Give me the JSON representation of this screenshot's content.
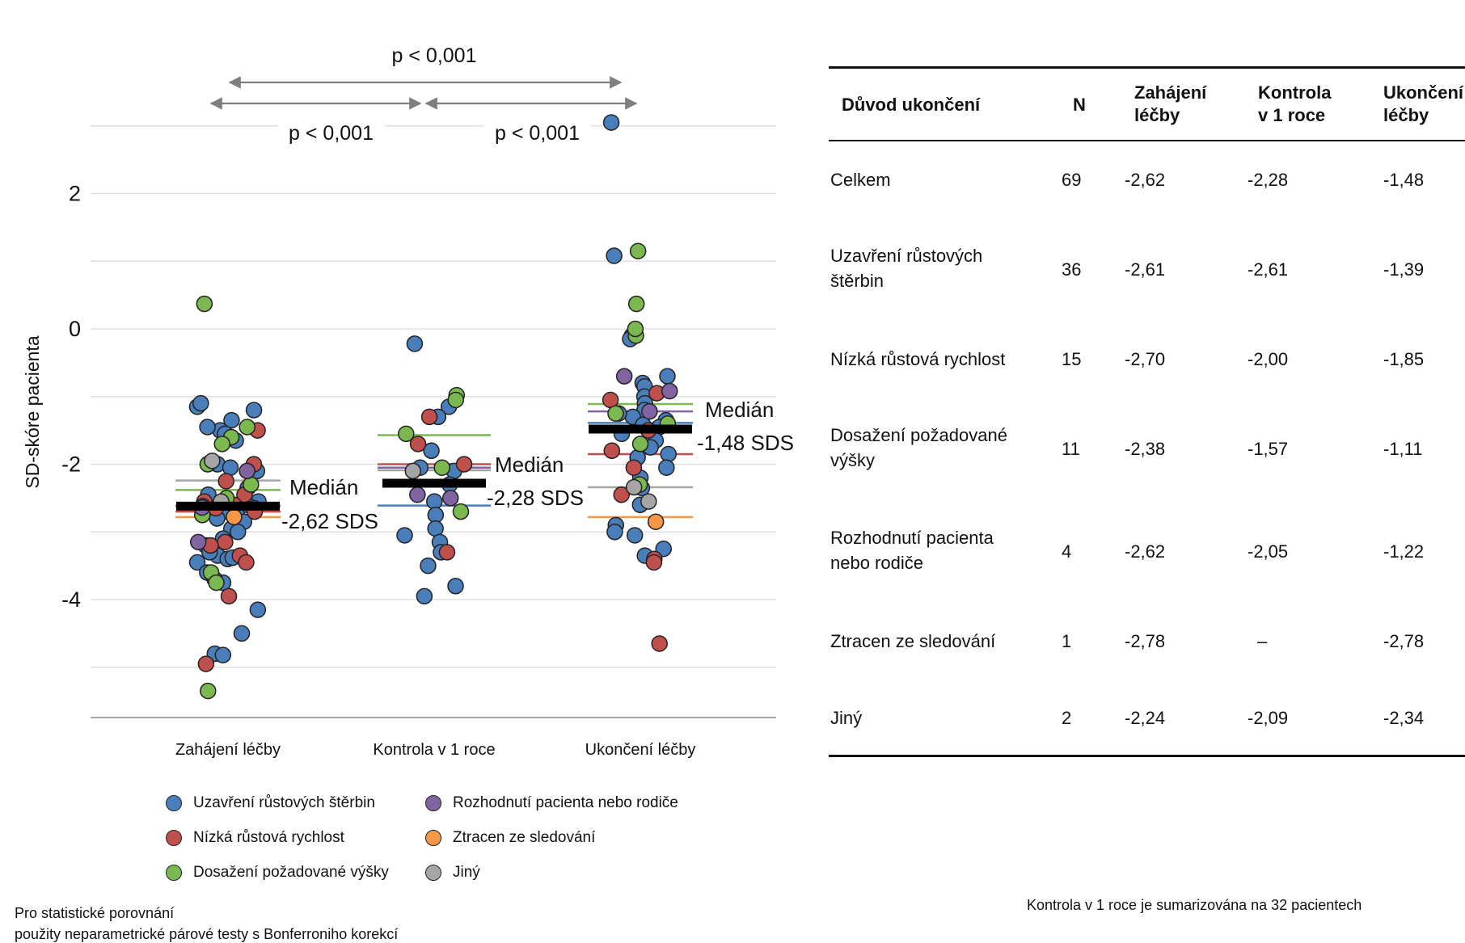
{
  "chart_data": {
    "type": "scatter",
    "ylabel": "SD-skóre pacienta",
    "ylim": [
      -5.8,
      3.2
    ],
    "yticks": [
      {
        "v": 2,
        "label": "2"
      },
      {
        "v": 0,
        "label": "0"
      },
      {
        "v": -2,
        "label": "-2"
      },
      {
        "v": -4,
        "label": "-4"
      }
    ],
    "gridlines": [
      3,
      2,
      1,
      0,
      -1,
      -2,
      -3,
      -4,
      -5
    ],
    "categories": [
      "Zahájení léčby",
      "Kontrola v 1 roce",
      "Ukončení léčby"
    ],
    "groups": [
      {
        "name": "Uzavření růstových štěrbin",
        "color": "#4a7ebb"
      },
      {
        "name": "Nízká růstová rychlost",
        "color": "#c0504d"
      },
      {
        "name": "Dosažení požadované výšky",
        "color": "#7bb84f"
      },
      {
        "name": "Rozhodnutí pacienta nebo rodiče",
        "color": "#8064a2"
      },
      {
        "name": "Ztracen ze sledování",
        "color": "#f79646"
      },
      {
        "name": "Jiný",
        "color": "#a5a5a5"
      }
    ],
    "group_medians": [
      [
        -2.61,
        -2.7,
        -2.38,
        -2.62,
        -2.78,
        -2.24
      ],
      [
        -2.61,
        -2.0,
        -1.57,
        -2.05,
        null,
        -2.09
      ],
      [
        -1.39,
        -1.85,
        -1.11,
        -1.22,
        -2.78,
        -2.34
      ]
    ],
    "overall_median": [
      -2.62,
      -2.28,
      -1.48
    ],
    "median_labels": [
      {
        "title": "Medián",
        "value": "-2,62 SDS"
      },
      {
        "title": "Medián",
        "value": "-2,28 SDS"
      },
      {
        "title": "Medián",
        "value": "-1,48 SDS"
      }
    ],
    "comparisons": [
      {
        "from": 0,
        "to": 2,
        "label": "p < 0,001"
      },
      {
        "from": 0,
        "to": 1,
        "label": "p < 0,001"
      },
      {
        "from": 1,
        "to": 2,
        "label": "p < 0,001"
      }
    ],
    "points": [
      [
        [
          -1.15,
          0
        ],
        [
          -1.2,
          0
        ],
        [
          -1.1,
          0
        ],
        [
          -1.35,
          0
        ],
        [
          -1.5,
          0
        ],
        [
          -1.55,
          0
        ],
        [
          -1.65,
          0
        ],
        [
          -1.45,
          0
        ],
        [
          -2.0,
          0
        ],
        [
          -2.05,
          0
        ],
        [
          -2.1,
          0
        ],
        [
          -2.35,
          0
        ],
        [
          -2.45,
          0
        ],
        [
          -2.55,
          0
        ],
        [
          -2.6,
          0
        ],
        [
          -2.62,
          0
        ],
        [
          -2.65,
          0
        ],
        [
          -2.7,
          0
        ],
        [
          -2.75,
          0
        ],
        [
          -2.8,
          0
        ],
        [
          -2.85,
          0
        ],
        [
          -2.95,
          0
        ],
        [
          -3.0,
          0
        ],
        [
          -3.1,
          0
        ],
        [
          -3.2,
          0
        ],
        [
          -3.35,
          0
        ],
        [
          -3.4,
          0
        ],
        [
          -3.45,
          0
        ],
        [
          -3.6,
          0
        ],
        [
          -3.75,
          0
        ],
        [
          -4.15,
          0
        ],
        [
          -4.5,
          0
        ],
        [
          -4.8,
          0
        ],
        [
          -4.82,
          0
        ],
        [
          -3.3,
          0
        ],
        [
          -3.38,
          0
        ],
        [
          -1.5,
          1
        ],
        [
          -2.0,
          1
        ],
        [
          -2.25,
          1
        ],
        [
          -2.45,
          1
        ],
        [
          -2.6,
          1
        ],
        [
          -2.7,
          1
        ],
        [
          -3.15,
          1
        ],
        [
          -3.2,
          1
        ],
        [
          -3.35,
          1
        ],
        [
          -3.45,
          1
        ],
        [
          -3.7,
          1
        ],
        [
          -3.95,
          1
        ],
        [
          -4.95,
          1
        ],
        [
          -2.55,
          1
        ],
        [
          -2.65,
          1
        ],
        [
          0.37,
          2
        ],
        [
          -1.45,
          2
        ],
        [
          -1.6,
          2
        ],
        [
          -1.7,
          2
        ],
        [
          -2.3,
          2
        ],
        [
          -2.5,
          2
        ],
        [
          -3.6,
          2
        ],
        [
          -3.75,
          2
        ],
        [
          -5.35,
          2
        ],
        [
          -2.0,
          2
        ],
        [
          -2.75,
          2
        ],
        [
          -2.1,
          3
        ],
        [
          -3.15,
          3
        ],
        [
          -2.62,
          3
        ],
        [
          -2.64,
          3
        ],
        [
          -2.78,
          4
        ],
        [
          -1.95,
          5
        ],
        [
          -2.55,
          5
        ]
      ],
      [
        [
          -0.22,
          0
        ],
        [
          -1.15,
          0
        ],
        [
          -1.3,
          0
        ],
        [
          -1.8,
          0
        ],
        [
          -2.05,
          0
        ],
        [
          -2.1,
          0
        ],
        [
          -2.3,
          0
        ],
        [
          -2.55,
          0
        ],
        [
          -2.75,
          0
        ],
        [
          -2.95,
          0
        ],
        [
          -3.05,
          0
        ],
        [
          -3.15,
          0
        ],
        [
          -3.3,
          0
        ],
        [
          -3.5,
          0
        ],
        [
          -3.8,
          0
        ],
        [
          -3.95,
          0
        ],
        [
          -1.3,
          1
        ],
        [
          -1.7,
          1
        ],
        [
          -2.0,
          1
        ],
        [
          -3.3,
          1
        ],
        [
          -0.98,
          2
        ],
        [
          -1.05,
          2
        ],
        [
          -1.55,
          2
        ],
        [
          -2.05,
          2
        ],
        [
          -2.7,
          2
        ],
        [
          -2.45,
          3
        ],
        [
          -2.5,
          3
        ],
        [
          -2.1,
          5
        ]
      ],
      [
        [
          3.05,
          0
        ],
        [
          1.08,
          0
        ],
        [
          -0.1,
          0
        ],
        [
          -0.15,
          0
        ],
        [
          -0.7,
          0
        ],
        [
          -0.8,
          0
        ],
        [
          -0.85,
          0
        ],
        [
          -1.0,
          0
        ],
        [
          -1.1,
          0
        ],
        [
          -1.2,
          0
        ],
        [
          -1.3,
          0
        ],
        [
          -1.35,
          0
        ],
        [
          -1.45,
          0
        ],
        [
          -1.55,
          0
        ],
        [
          -1.65,
          0
        ],
        [
          -1.75,
          0
        ],
        [
          -1.85,
          0
        ],
        [
          -1.9,
          0
        ],
        [
          -2.05,
          0
        ],
        [
          -2.2,
          0
        ],
        [
          -2.35,
          0
        ],
        [
          -2.6,
          0
        ],
        [
          -2.9,
          0
        ],
        [
          -3.0,
          0
        ],
        [
          -3.05,
          0
        ],
        [
          -3.25,
          0
        ],
        [
          -3.35,
          0
        ],
        [
          -1.25,
          0
        ],
        [
          -1.42,
          0
        ],
        [
          -0.95,
          1
        ],
        [
          -1.05,
          1
        ],
        [
          -1.5,
          1
        ],
        [
          -1.8,
          1
        ],
        [
          -2.05,
          1
        ],
        [
          -2.45,
          1
        ],
        [
          -3.4,
          1
        ],
        [
          -3.45,
          1
        ],
        [
          -4.65,
          1
        ],
        [
          1.15,
          2
        ],
        [
          0.37,
          2
        ],
        [
          -0.1,
          2
        ],
        [
          0.0,
          2
        ],
        [
          -1.25,
          2
        ],
        [
          -1.7,
          2
        ],
        [
          -2.3,
          2
        ],
        [
          -1.4,
          2
        ],
        [
          -0.7,
          3
        ],
        [
          -0.92,
          3
        ],
        [
          -1.22,
          3
        ],
        [
          -2.85,
          4
        ],
        [
          -2.55,
          5
        ],
        [
          -2.34,
          5
        ]
      ]
    ]
  },
  "table": {
    "headers": {
      "reason": "Důvod ukončení",
      "n": "N",
      "c1a": "Zahájení",
      "c1b": "léčby",
      "c2a": "Kontrola",
      "c2b": "v 1 roce",
      "c3a": "Ukončení",
      "c3b": "léčby"
    },
    "rows": [
      {
        "r1": "Celkem",
        "r2": "",
        "n": "69",
        "a": "-2,62",
        "b": "-2,28",
        "c": "-1,48"
      },
      {
        "r1": "Uzavření růstových",
        "r2": "štěrbin",
        "n": "36",
        "a": "-2,61",
        "b": "-2,61",
        "c": "-1,39"
      },
      {
        "r1": "Nízká růstová rychlost",
        "r2": "",
        "n": "15",
        "a": "-2,70",
        "b": "-2,00",
        "c": "-1,85"
      },
      {
        "r1": "Dosažení požadované",
        "r2": "výšky",
        "n": "11",
        "a": "-2,38",
        "b": "-1,57",
        "c": "-1,11"
      },
      {
        "r1": "Rozhodnutí pacienta",
        "r2": "nebo rodiče",
        "n": "4",
        "a": "-2,62",
        "b": "-2,05",
        "c": "-1,22"
      },
      {
        "r1": "Ztracen ze sledování",
        "r2": "",
        "n": "1",
        "a": "-2,78",
        "b": "–",
        "c": "-2,78"
      },
      {
        "r1": "Jiný",
        "r2": "",
        "n": "2",
        "a": "-2,24",
        "b": "-2,09",
        "c": "-2,34"
      }
    ]
  },
  "footnotes": {
    "left_1": "Pro statistické porovnání",
    "left_2": "použity neparametrické párové testy s Bonferroniho korekcí",
    "right": "Kontrola v 1 roce je sumarizována na 32 pacientech"
  }
}
